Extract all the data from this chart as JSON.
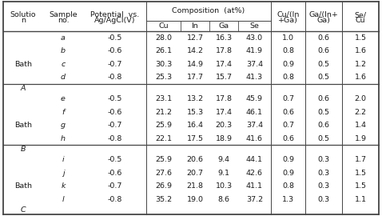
{
  "rows": [
    [
      "",
      "a",
      "-0.5",
      "28.0",
      "12.7",
      "16.3",
      "43.0",
      "1.0",
      "0.6",
      "1.5"
    ],
    [
      "",
      "b",
      "-0.6",
      "26.1",
      "14.2",
      "17.8",
      "41.9",
      "0.8",
      "0.6",
      "1.6"
    ],
    [
      "Bath",
      "c",
      "-0.7",
      "30.3",
      "14.9",
      "17.4",
      "37.4",
      "0.9",
      "0.5",
      "1.2"
    ],
    [
      "",
      "d",
      "-0.8",
      "25.3",
      "17.7",
      "15.7",
      "41.3",
      "0.8",
      "0.5",
      "1.6"
    ],
    [
      "A",
      "",
      "",
      "",
      "",
      "",
      "",
      "",
      "",
      ""
    ],
    [
      "",
      "e",
      "-0.5",
      "23.1",
      "13.2",
      "17.8",
      "45.9",
      "0.7",
      "0.6",
      "2.0"
    ],
    [
      "",
      "f",
      "-0.6",
      "21.2",
      "15.3",
      "17.4",
      "46.1",
      "0.6",
      "0.5",
      "2.2"
    ],
    [
      "Bath",
      "g",
      "-0.7",
      "25.9",
      "16.4",
      "20.3",
      "37.4",
      "0.7",
      "0.6",
      "1.4"
    ],
    [
      "",
      "h",
      "-0.8",
      "22.1",
      "17.5",
      "18.9",
      "41.6",
      "0.6",
      "0.5",
      "1.9"
    ],
    [
      "B",
      "",
      "",
      "",
      "",
      "",
      "",
      "",
      "",
      ""
    ],
    [
      "",
      "i",
      "-0.5",
      "25.9",
      "20.6",
      "9.4",
      "44.1",
      "0.9",
      "0.3",
      "1.7"
    ],
    [
      "",
      "j",
      "-0.6",
      "27.6",
      "20.7",
      "9.1",
      "42.6",
      "0.9",
      "0.3",
      "1.5"
    ],
    [
      "Bath",
      "k",
      "-0.7",
      "26.9",
      "21.8",
      "10.3",
      "41.1",
      "0.8",
      "0.3",
      "1.5"
    ],
    [
      "",
      "l",
      "-0.8",
      "35.2",
      "19.0",
      "8.6",
      "37.2",
      "1.3",
      "0.3",
      "1.1"
    ],
    [
      "C",
      "",
      "",
      "",
      "",
      "",
      "",
      "",
      "",
      ""
    ]
  ],
  "section_dividers": [
    4,
    9
  ],
  "text_color": "#1a1a1a",
  "line_color": "#444444",
  "font_size": 6.8,
  "font_family": "DejaVu Sans"
}
